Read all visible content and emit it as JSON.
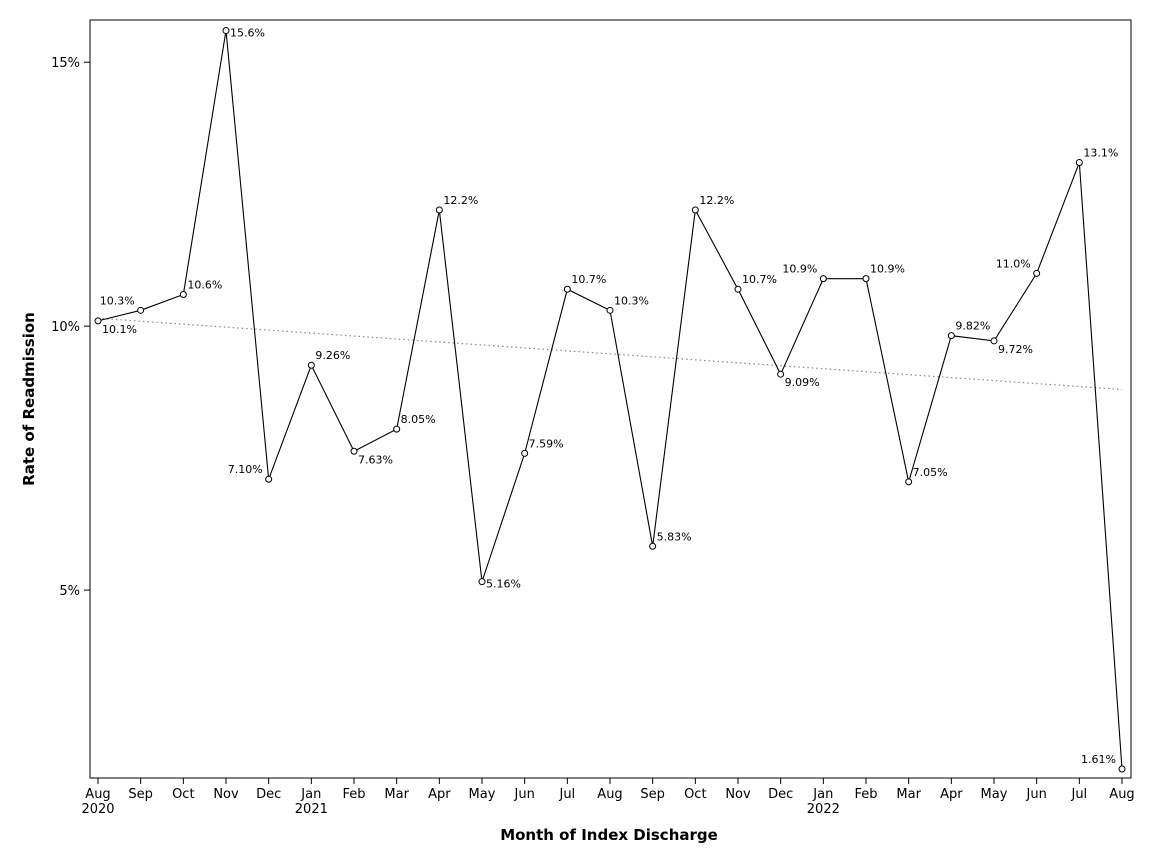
{
  "chart_data": {
    "type": "line",
    "x_label": "Month of Index Discharge",
    "y_label": "Rate of Readmission",
    "categories": [
      "Aug",
      "Sep",
      "Oct",
      "Nov",
      "Dec",
      "Jan",
      "Feb",
      "Mar",
      "Apr",
      "May",
      "Jun",
      "Jul",
      "Aug",
      "Sep",
      "Oct",
      "Nov",
      "Dec",
      "Jan",
      "Feb",
      "Mar",
      "Apr",
      "May",
      "Jun",
      "Jul",
      "Aug"
    ],
    "x_years": [
      "2020",
      null,
      null,
      null,
      null,
      "2021",
      null,
      null,
      null,
      null,
      null,
      null,
      null,
      null,
      null,
      null,
      null,
      "2022",
      null,
      null,
      null,
      null,
      null,
      null,
      null
    ],
    "series": [
      {
        "color": "#000000",
        "values": [
          10.1,
          10.3,
          10.6,
          15.6,
          7.1,
          9.26,
          7.63,
          8.05,
          12.2,
          5.16,
          7.59,
          10.7,
          10.3,
          5.83,
          12.2,
          10.7,
          9.09,
          10.9,
          10.9,
          7.05,
          9.82,
          9.72,
          11.0,
          13.1,
          1.61
        ],
        "value_labels": [
          "10.1%",
          "10.3%",
          "10.6%",
          "15.6%",
          "7.10%",
          "9.26%",
          "7.63%",
          "8.05%",
          "12.2%",
          "5.16%",
          "7.59%",
          "10.7%",
          "10.3%",
          "5.83%",
          "12.2%",
          "10.7%",
          "9.09%",
          "10.9%",
          "10.9%",
          "7.05%",
          "9.82%",
          "9.72%",
          "11.0%",
          "13.1%",
          "1.61%"
        ]
      }
    ],
    "trend_line": {
      "start": 10.15,
      "end": 8.8,
      "color": "#888888"
    },
    "ylim": [
      1.44,
      15.8
    ],
    "yticks": [
      {
        "value": 5,
        "label": "5%"
      },
      {
        "value": 10,
        "label": "10%"
      },
      {
        "value": 15,
        "label": "15%"
      }
    ],
    "grid": false
  }
}
